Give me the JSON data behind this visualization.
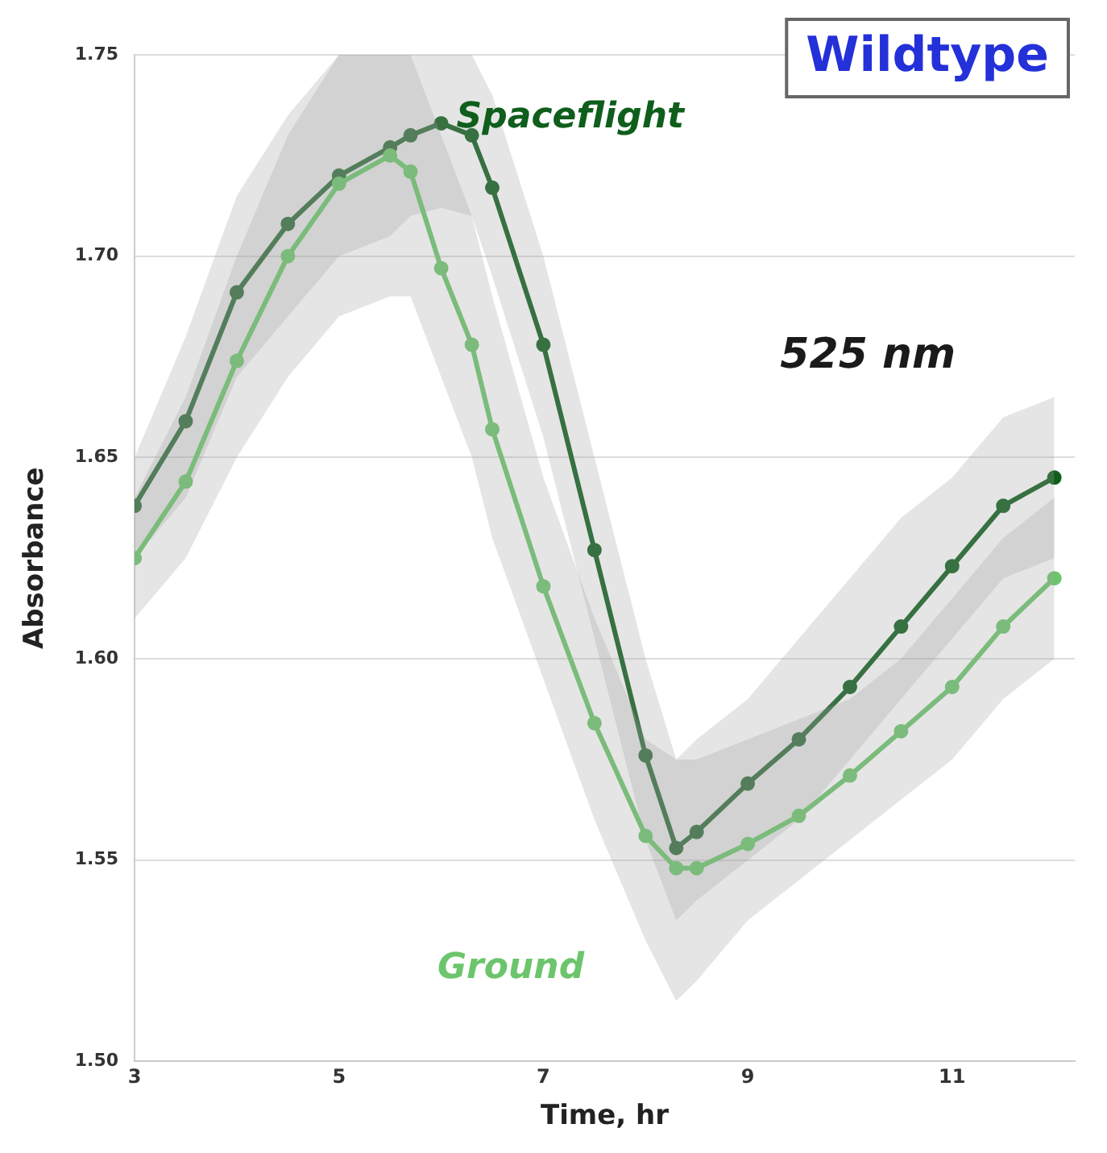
{
  "chart_data": {
    "type": "line",
    "xlabel": "Time, hr",
    "ylabel": "Absorbance",
    "annotations": [
      "Wildtype",
      "525 nm"
    ],
    "xlim": [
      3,
      12.2
    ],
    "xticks": [
      3,
      5,
      7,
      9,
      11
    ],
    "ylim": [
      1.5,
      1.75
    ],
    "yticks": [
      {
        "value": 1.5,
        "label": "1.50"
      },
      {
        "value": 1.55,
        "label": "1.55"
      },
      {
        "value": 1.6,
        "label": "1.60"
      },
      {
        "value": 1.65,
        "label": "1.65"
      },
      {
        "value": 1.7,
        "label": "1.70"
      },
      {
        "value": 1.75,
        "label": "1.75"
      }
    ],
    "grid": "y",
    "legend": false,
    "marker": "circle",
    "line_style": "solid",
    "x": [
      3,
      3.5,
      4,
      4.5,
      5,
      5.5,
      5.7,
      6,
      6.3,
      6.5,
      7,
      7.5,
      8,
      8.3,
      8.5,
      9,
      9.5,
      10,
      10.5,
      11,
      11.5,
      12
    ],
    "series": [
      {
        "name": "Ground",
        "color": "#6cc56c",
        "values": [
          1.625,
          1.644,
          1.674,
          1.7,
          1.718,
          1.725,
          1.721,
          1.697,
          1.678,
          1.657,
          1.618,
          1.584,
          1.556,
          1.548,
          1.548,
          1.554,
          1.561,
          1.571,
          1.582,
          1.593,
          1.608,
          1.62
        ],
        "lower": [
          1.61,
          1.625,
          1.65,
          1.67,
          1.685,
          1.69,
          1.69,
          1.67,
          1.65,
          1.63,
          1.595,
          1.56,
          1.53,
          1.515,
          1.52,
          1.535,
          1.545,
          1.555,
          1.565,
          1.575,
          1.59,
          1.6
        ],
        "upper": [
          1.64,
          1.665,
          1.7,
          1.73,
          1.75,
          1.75,
          1.75,
          1.73,
          1.71,
          1.69,
          1.645,
          1.61,
          1.58,
          1.575,
          1.575,
          1.58,
          1.585,
          1.59,
          1.6,
          1.615,
          1.63,
          1.64
        ]
      },
      {
        "name": "Spaceflight",
        "color": "#0f5e1c",
        "values": [
          1.638,
          1.659,
          1.691,
          1.708,
          1.72,
          1.727,
          1.73,
          1.733,
          1.73,
          1.717,
          1.678,
          1.627,
          1.576,
          1.553,
          1.557,
          1.569,
          1.58,
          1.593,
          1.608,
          1.623,
          1.638,
          1.645
        ],
        "lower": [
          1.625,
          1.64,
          1.67,
          1.685,
          1.7,
          1.705,
          1.71,
          1.712,
          1.71,
          1.695,
          1.655,
          1.605,
          1.555,
          1.535,
          1.54,
          1.55,
          1.56,
          1.575,
          1.59,
          1.605,
          1.62,
          1.625
        ],
        "upper": [
          1.65,
          1.68,
          1.715,
          1.735,
          1.75,
          1.75,
          1.75,
          1.75,
          1.75,
          1.74,
          1.7,
          1.65,
          1.6,
          1.575,
          1.58,
          1.59,
          1.605,
          1.62,
          1.635,
          1.645,
          1.66,
          1.665
        ]
      }
    ]
  }
}
